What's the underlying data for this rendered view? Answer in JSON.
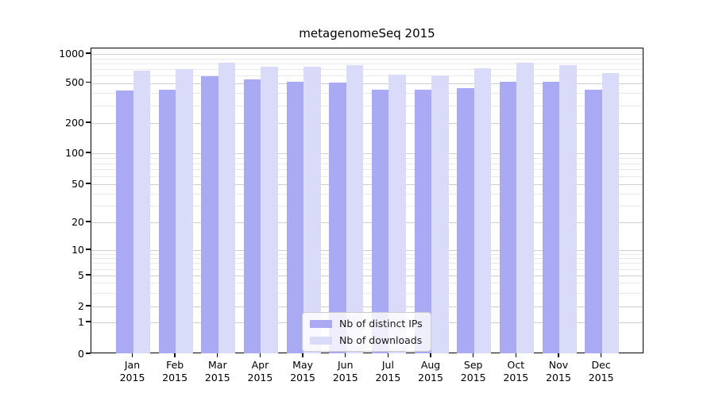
{
  "chart_data": {
    "type": "bar",
    "title": "metagenomeSeq 2015",
    "categories": [
      "Jan",
      "Feb",
      "Mar",
      "Apr",
      "May",
      "Jun",
      "Jul",
      "Aug",
      "Sep",
      "Oct",
      "Nov",
      "Dec"
    ],
    "category_year": "2015",
    "series": [
      {
        "name": "Nb of distinct IPs",
        "color": "#a9a9f4",
        "values": [
          424,
          425,
          585,
          542,
          515,
          505,
          428,
          430,
          448,
          513,
          512,
          430
        ]
      },
      {
        "name": "Nb of downloads",
        "color": "#dadaf9",
        "values": [
          672,
          697,
          815,
          733,
          740,
          765,
          610,
          595,
          708,
          815,
          770,
          630
        ]
      }
    ],
    "xlabel": "",
    "ylabel": "",
    "yscale": "symlog",
    "ytick_labels": [
      "1000",
      "500",
      "200",
      "100",
      "50",
      "20",
      "10",
      "5",
      "2",
      "1",
      "0"
    ],
    "ytick_values": [
      1000,
      500,
      200,
      100,
      50,
      20,
      10,
      5,
      2,
      1,
      0
    ],
    "minor_gridline_values": [
      900,
      800,
      700,
      600,
      400,
      300,
      90,
      80,
      70,
      60,
      40,
      30,
      9,
      8,
      7,
      6,
      4,
      3
    ],
    "ylim": [
      0,
      1150
    ],
    "grid": true,
    "legend_position": "lower center"
  }
}
